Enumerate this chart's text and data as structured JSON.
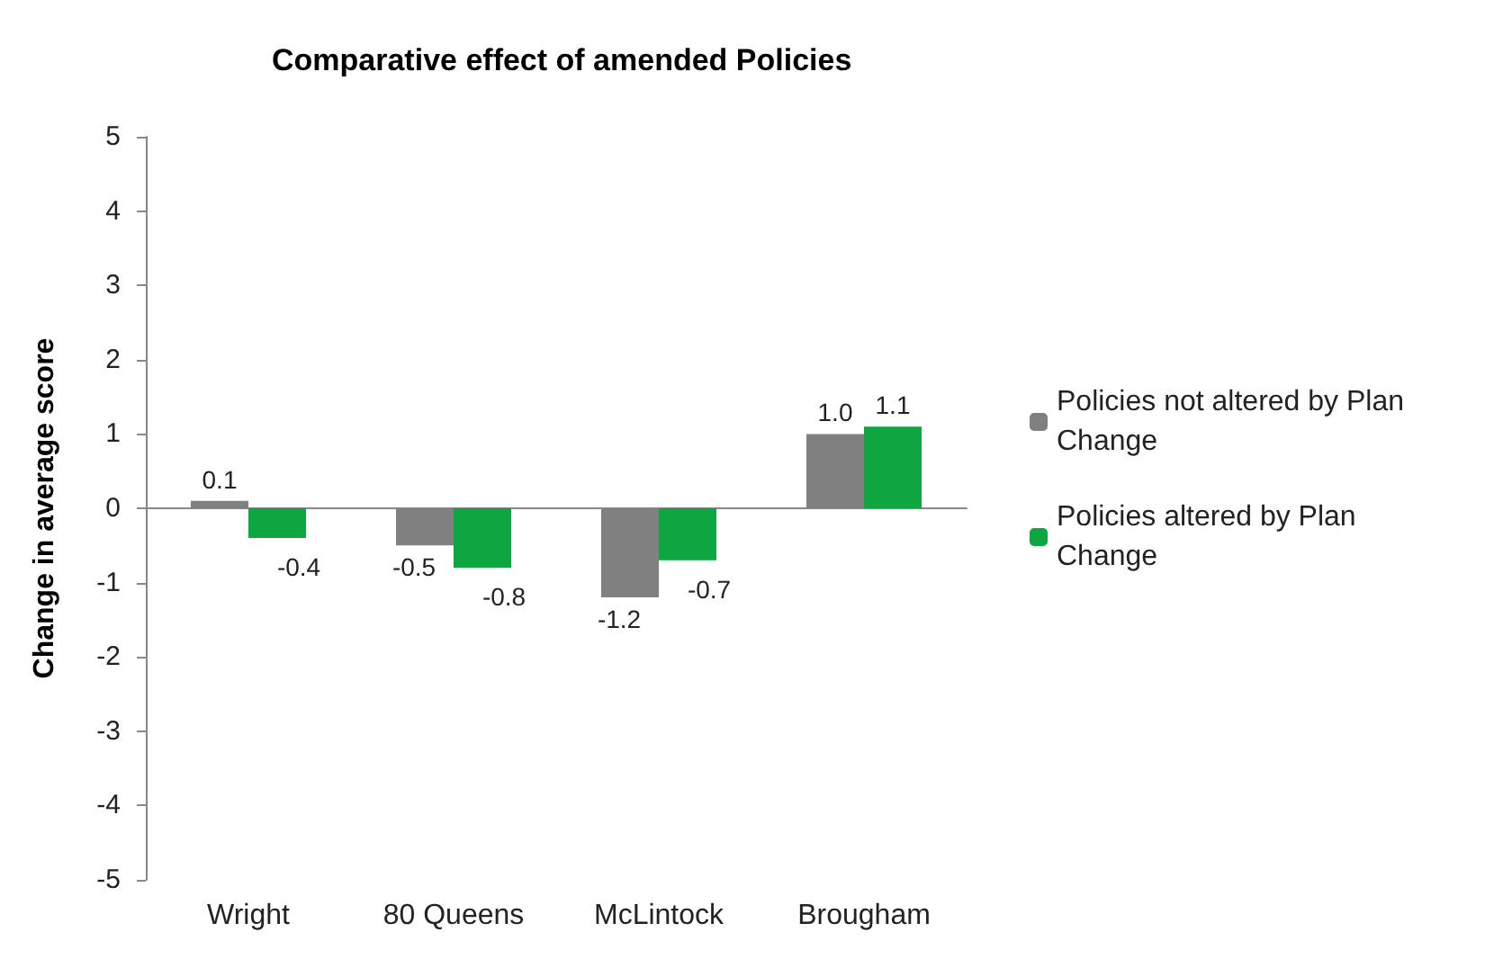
{
  "chart_data": {
    "type": "bar",
    "title": "Comparative effect of amended Policies",
    "ylabel": "Change in average score",
    "categories": [
      "Wright",
      "80 Queens",
      "McLintock",
      "Brougham"
    ],
    "series": [
      {
        "name": "Policies not altered by Plan Change",
        "color": "#808080",
        "values": [
          0.1,
          -0.5,
          -1.2,
          1.0
        ],
        "value_labels": [
          "0.1",
          "-0.5",
          "-1.2",
          "1.0"
        ]
      },
      {
        "name": "Policies altered by Plan Change",
        "color": "#0da640",
        "values": [
          -0.4,
          -0.8,
          -0.7,
          1.1
        ],
        "value_labels": [
          "-0.4",
          "-0.8",
          "-0.7",
          "1.1"
        ]
      }
    ],
    "ylim": [
      -5,
      5
    ],
    "yticks": [
      -5,
      -4,
      -3,
      -2,
      -1,
      0,
      1,
      2,
      3,
      4,
      5
    ],
    "legend": "right"
  }
}
